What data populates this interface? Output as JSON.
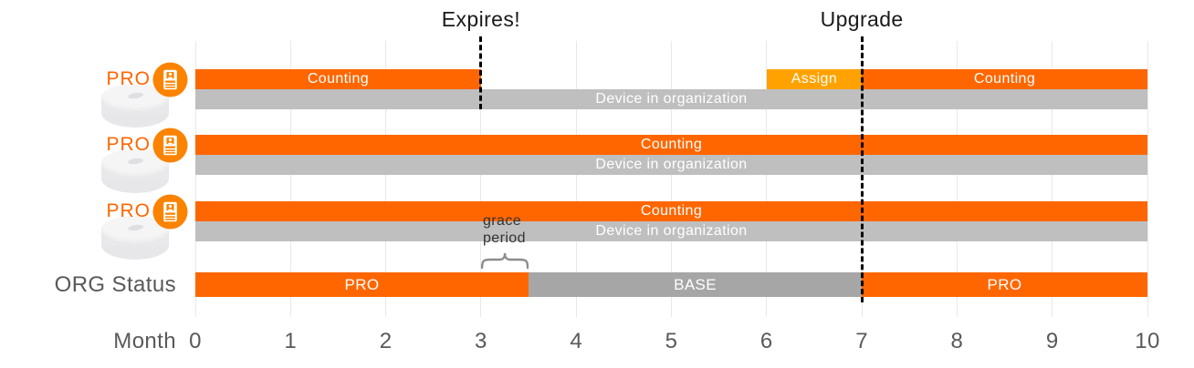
{
  "colors": {
    "orange": "#ff6600",
    "assign_orange": "#ffa200",
    "device_gray": "#bfbfbf",
    "base_gray": "#a6a6a6",
    "gridline": "#e8e8e8",
    "axis_text": "#595959",
    "annotation_text": "#1a1a1a",
    "bar_text": "#ffffff",
    "brace": "#8c8c8c"
  },
  "annotations": {
    "expires": {
      "label": "Expires!",
      "month": 3
    },
    "upgrade": {
      "label": "Upgrade",
      "month": 7
    },
    "grace_period": {
      "line1": "grace",
      "line2": "period",
      "from_month": 3,
      "to_month": 3.5
    }
  },
  "device_rows": [
    {
      "license_label": "PRO",
      "license_icon": "license-badge-icon",
      "device_icon": "device-puck",
      "segments": [
        {
          "label": "Counting",
          "from": 0,
          "to": 3,
          "style": "counting"
        },
        {
          "label": "Assign",
          "from": 6,
          "to": 7,
          "style": "assign"
        },
        {
          "label": "Counting",
          "from": 7,
          "to": 10,
          "style": "counting"
        }
      ],
      "org_membership": {
        "label": "Device in organization",
        "from": 0,
        "to": 10
      }
    },
    {
      "license_label": "PRO",
      "license_icon": "license-badge-icon",
      "device_icon": "device-puck",
      "segments": [
        {
          "label": "Counting",
          "from": 0,
          "to": 10,
          "style": "counting"
        }
      ],
      "org_membership": {
        "label": "Device in organization",
        "from": 0,
        "to": 10
      }
    },
    {
      "license_label": "PRO",
      "license_icon": "license-badge-icon",
      "device_icon": "device-puck",
      "segments": [
        {
          "label": "Counting",
          "from": 0,
          "to": 10,
          "style": "counting"
        }
      ],
      "org_membership": {
        "label": "Device in organization",
        "from": 0,
        "to": 10
      }
    }
  ],
  "org_status_row": {
    "label": "ORG Status",
    "segments": [
      {
        "label": "PRO",
        "from": 0,
        "to": 3.5,
        "style": "pro"
      },
      {
        "label": "BASE",
        "from": 3.5,
        "to": 7,
        "style": "base"
      },
      {
        "label": "PRO",
        "from": 7,
        "to": 10,
        "style": "pro"
      }
    ]
  },
  "axis": {
    "label": "Month",
    "ticks": [
      "0",
      "1",
      "2",
      "3",
      "4",
      "5",
      "6",
      "7",
      "8",
      "9",
      "10"
    ]
  }
}
